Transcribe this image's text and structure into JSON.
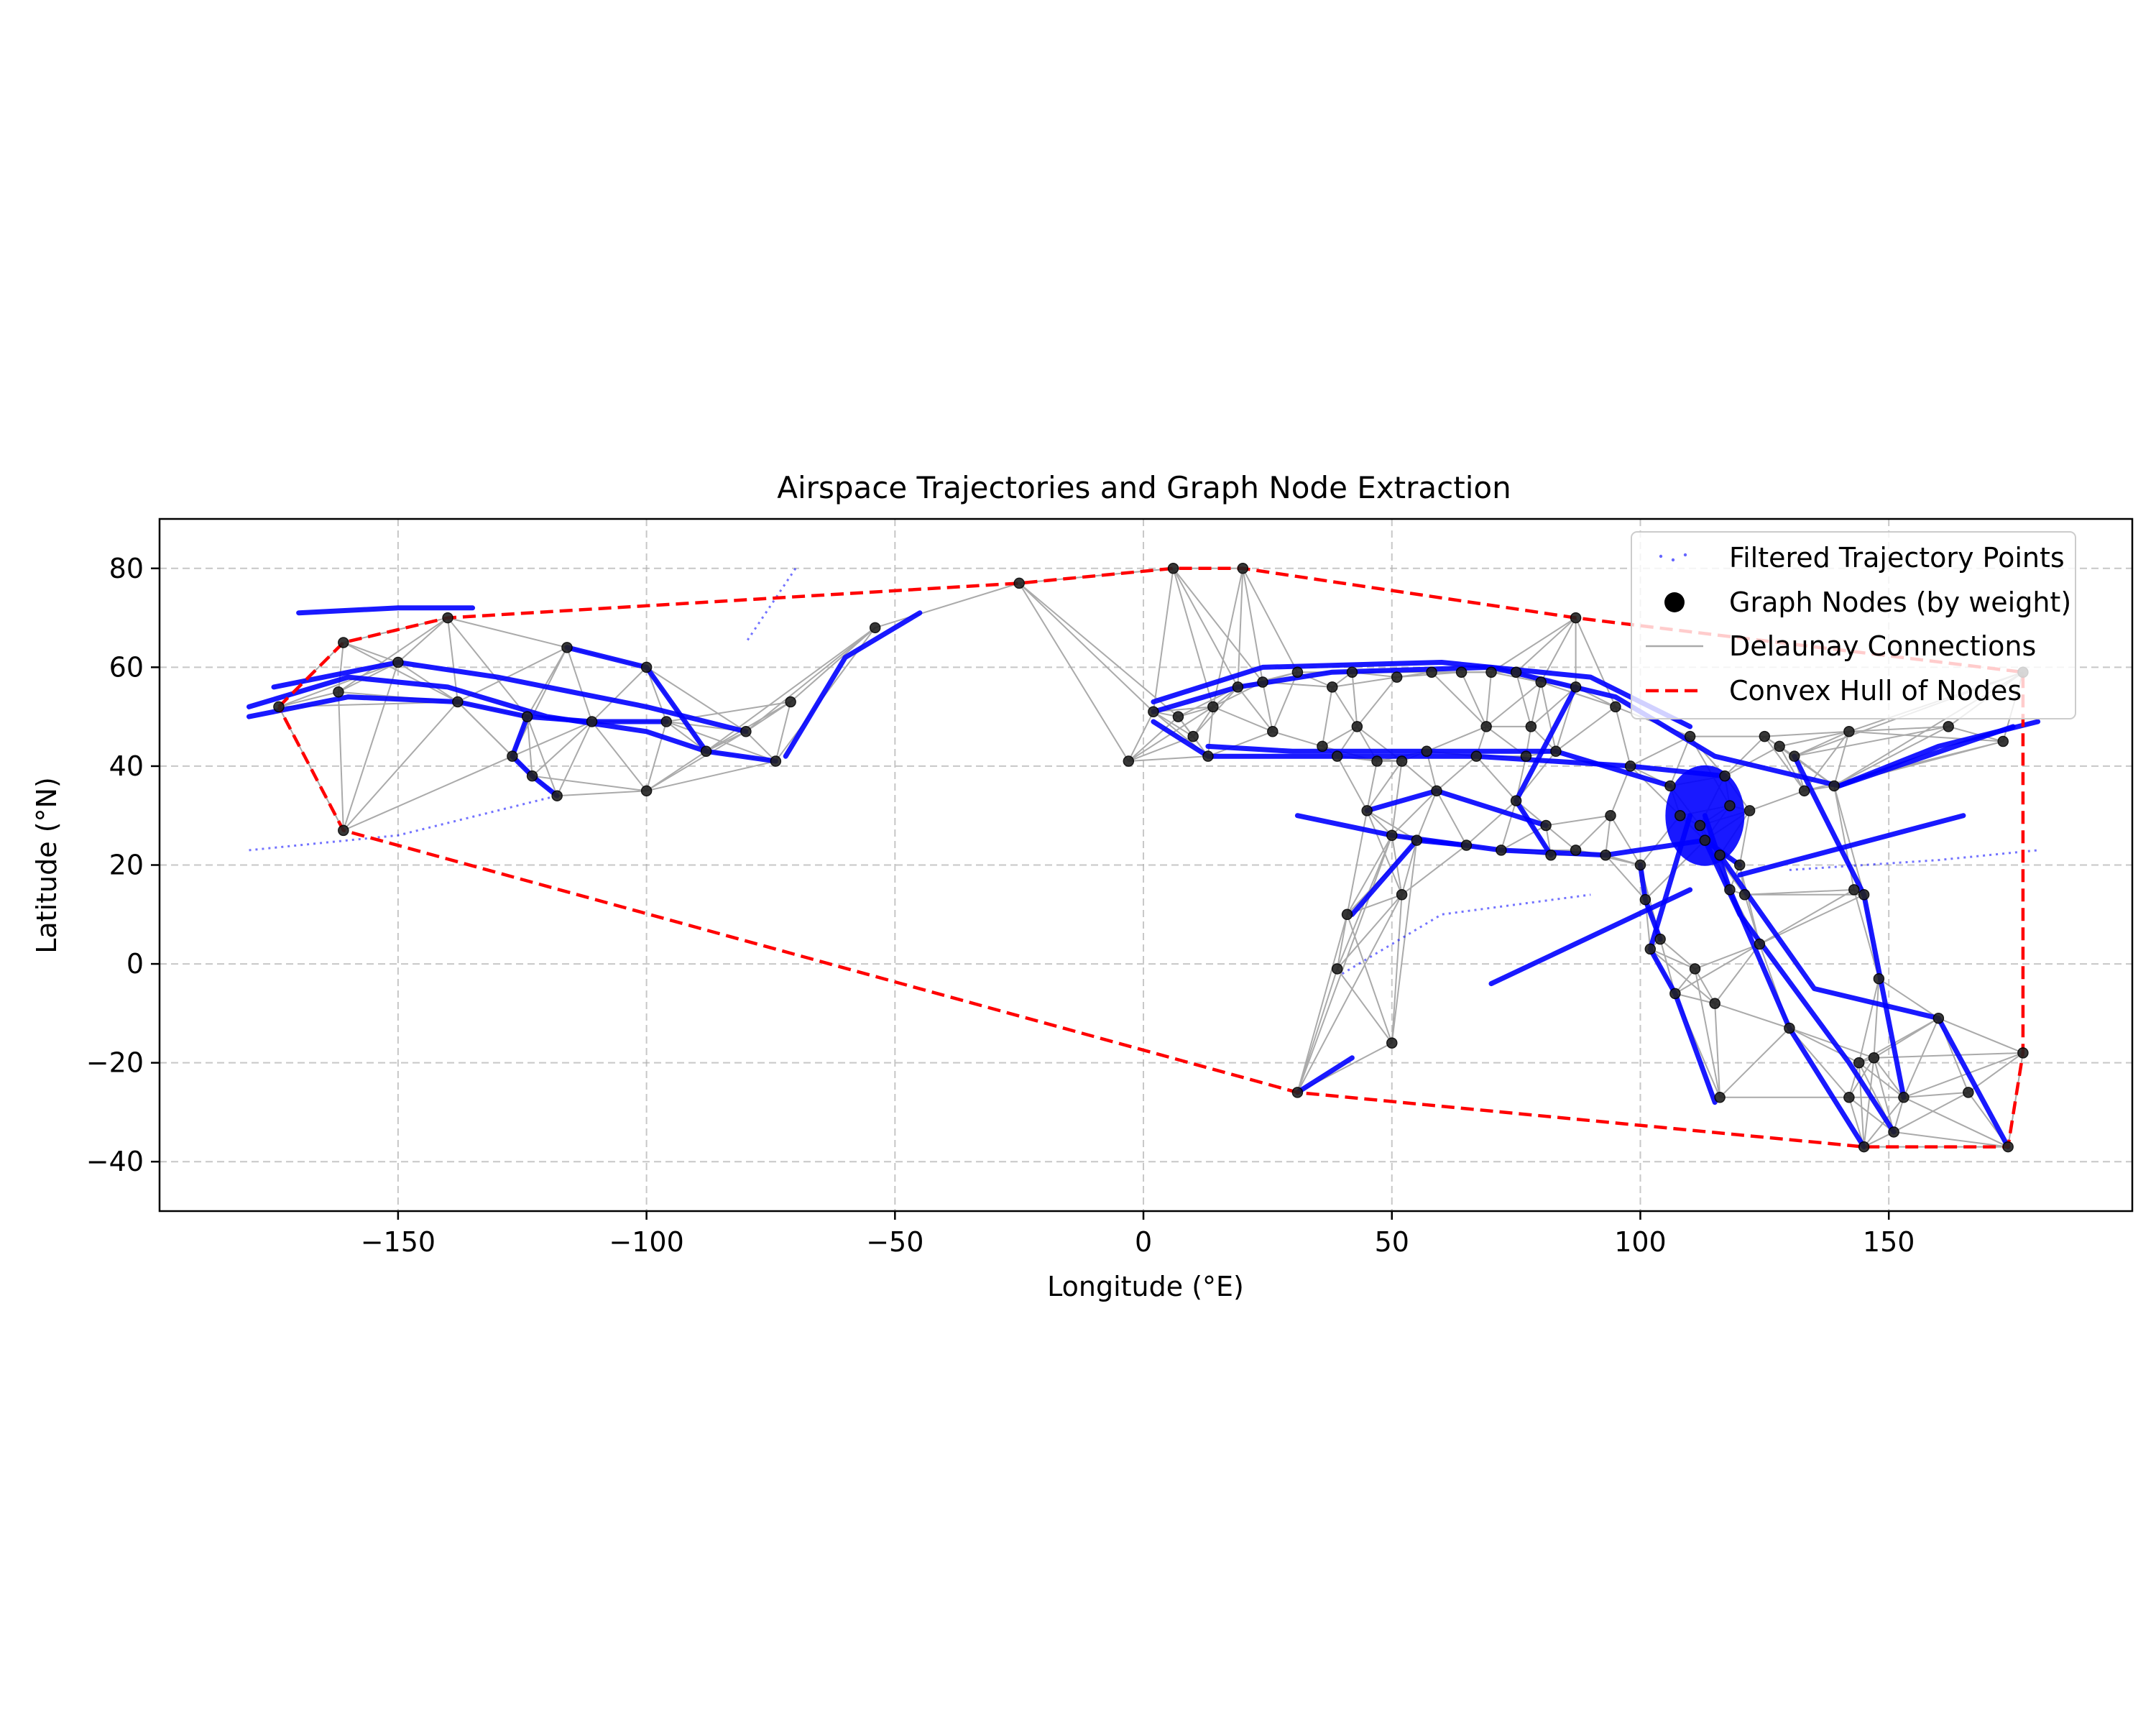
{
  "chart_data": {
    "type": "scatter",
    "title": "Airspace Trajectories and Graph Node Extraction",
    "xlabel": "Longitude (°E)",
    "ylabel": "Latitude (°N)",
    "xlim": [
      -198,
      199
    ],
    "ylim": [
      -50,
      90
    ],
    "xticks": [
      -150,
      -100,
      -50,
      0,
      50,
      100,
      150
    ],
    "yticks": [
      -40,
      -20,
      0,
      20,
      40,
      60,
      80
    ],
    "grid": true,
    "legend_position": "top-right",
    "legend": [
      {
        "label": "Filtered Trajectory Points",
        "kind": "points",
        "color": "#0000ff"
      },
      {
        "label": "Graph Nodes (by weight)",
        "kind": "marker",
        "color": "#000000"
      },
      {
        "label": "Delaunay Connections",
        "kind": "line",
        "color": "#aaaaaa"
      },
      {
        "label": "Convex Hull of Nodes",
        "kind": "dashed",
        "color": "#ff0000"
      }
    ],
    "colors": {
      "points": "#0000ff",
      "nodes": "#000000",
      "edges": "#aaaaaa",
      "hull": "#ff0000",
      "grid": "#b0b0b0"
    },
    "nodes": [
      [
        -174,
        52
      ],
      [
        -161,
        65
      ],
      [
        -162,
        55
      ],
      [
        -161,
        27
      ],
      [
        -150,
        61
      ],
      [
        -140,
        70
      ],
      [
        -138,
        53
      ],
      [
        -127,
        42
      ],
      [
        -124,
        50
      ],
      [
        -123,
        38
      ],
      [
        -118,
        34
      ],
      [
        -116,
        64
      ],
      [
        -111,
        49
      ],
      [
        -100,
        60
      ],
      [
        -100,
        35
      ],
      [
        -96,
        49
      ],
      [
        -88,
        43
      ],
      [
        -80,
        47
      ],
      [
        -74,
        41
      ],
      [
        -71,
        53
      ],
      [
        -54,
        68
      ],
      [
        -25,
        77
      ],
      [
        -3,
        41
      ],
      [
        6,
        80
      ],
      [
        20,
        80
      ],
      [
        2,
        51
      ],
      [
        7,
        50
      ],
      [
        10,
        46
      ],
      [
        14,
        52
      ],
      [
        13,
        42
      ],
      [
        19,
        56
      ],
      [
        24,
        57
      ],
      [
        26,
        47
      ],
      [
        31,
        59
      ],
      [
        36,
        44
      ],
      [
        38,
        56
      ],
      [
        39,
        42
      ],
      [
        42,
        59
      ],
      [
        43,
        48
      ],
      [
        45,
        31
      ],
      [
        47,
        41
      ],
      [
        50,
        26
      ],
      [
        51,
        58
      ],
      [
        52,
        41
      ],
      [
        55,
        25
      ],
      [
        57,
        43
      ],
      [
        58,
        59
      ],
      [
        59,
        35
      ],
      [
        64,
        59
      ],
      [
        65,
        24
      ],
      [
        67,
        42
      ],
      [
        69,
        48
      ],
      [
        70,
        59
      ],
      [
        72,
        23
      ],
      [
        75,
        33
      ],
      [
        75,
        59
      ],
      [
        77,
        42
      ],
      [
        78,
        48
      ],
      [
        80,
        57
      ],
      [
        81,
        28
      ],
      [
        82,
        22
      ],
      [
        83,
        43
      ],
      [
        87,
        23
      ],
      [
        87,
        56
      ],
      [
        87,
        70
      ],
      [
        93,
        22
      ],
      [
        94,
        30
      ],
      [
        95,
        52
      ],
      [
        98,
        40
      ],
      [
        100,
        20
      ],
      [
        101,
        13
      ],
      [
        102,
        3
      ],
      [
        104,
        5
      ],
      [
        106,
        36
      ],
      [
        107,
        -6
      ],
      [
        110,
        46
      ],
      [
        111,
        -1
      ],
      [
        113,
        25
      ],
      [
        115,
        -8
      ],
      [
        117,
        38
      ],
      [
        118,
        32
      ],
      [
        118,
        15
      ],
      [
        121,
        14
      ],
      [
        122,
        31
      ],
      [
        124,
        4
      ],
      [
        125,
        46
      ],
      [
        128,
        44
      ],
      [
        131,
        42
      ],
      [
        130,
        -13
      ],
      [
        133,
        35
      ],
      [
        139,
        36
      ],
      [
        142,
        47
      ],
      [
        144,
        -20
      ],
      [
        143,
        15
      ],
      [
        145,
        14
      ],
      [
        145,
        -37
      ],
      [
        148,
        -3
      ],
      [
        151,
        -34
      ],
      [
        153,
        -27
      ],
      [
        160,
        -11
      ],
      [
        162,
        48
      ],
      [
        166,
        -26
      ],
      [
        173,
        45
      ],
      [
        174,
        -37
      ],
      [
        177,
        -18
      ],
      [
        177,
        59
      ],
      [
        41,
        10
      ],
      [
        39,
        -1
      ],
      [
        52,
        14
      ],
      [
        50,
        -16
      ],
      [
        31,
        -26
      ],
      [
        116,
        -27
      ],
      [
        142,
        -27
      ],
      [
        147,
        -19
      ],
      [
        120,
        20
      ],
      [
        112,
        28
      ],
      [
        108,
        30
      ],
      [
        116,
        22
      ]
    ],
    "hull": [
      [
        -174,
        52
      ],
      [
        -161,
        65
      ],
      [
        -140,
        70
      ],
      [
        -25,
        77
      ],
      [
        6,
        80
      ],
      [
        20,
        80
      ],
      [
        87,
        70
      ],
      [
        177,
        59
      ],
      [
        177,
        -18
      ],
      [
        174,
        -37
      ],
      [
        145,
        -37
      ],
      [
        31,
        -26
      ],
      [
        -161,
        27
      ],
      [
        -174,
        52
      ]
    ]
  }
}
